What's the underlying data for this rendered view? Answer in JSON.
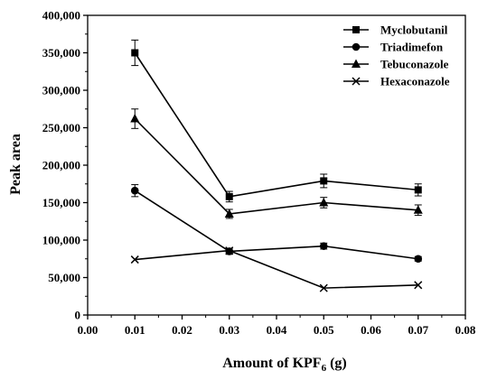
{
  "chart_data": {
    "type": "line",
    "xlabel": "Amount of KPF",
    "xlabel_sub": "6",
    "xlabel_tail": " (g)",
    "ylabel": "Peak area",
    "x": [
      0.01,
      0.03,
      0.05,
      0.07
    ],
    "xlim": [
      0.0,
      0.08
    ],
    "ylim": [
      0,
      400000
    ],
    "x_ticks": [
      "0.00",
      "0.01",
      "0.02",
      "0.03",
      "0.04",
      "0.05",
      "0.06",
      "0.07",
      "0.08"
    ],
    "y_ticks": [
      "0",
      "50,000",
      "100,000",
      "150,000",
      "200,000",
      "250,000",
      "300,000",
      "350,000",
      "400,000"
    ],
    "legend_position": "top-right",
    "grid": false,
    "series": [
      {
        "name": "Myclobutanil",
        "marker": "square",
        "values": [
          350000,
          158000,
          179000,
          167000
        ],
        "errors": [
          17000,
          7000,
          9000,
          8000
        ]
      },
      {
        "name": "Triadimefon",
        "marker": "circle",
        "values": [
          166000,
          85000,
          92000,
          75000
        ],
        "errors": [
          8000,
          4000,
          4000,
          3000
        ]
      },
      {
        "name": "Tebuconazole",
        "marker": "triangle",
        "values": [
          262000,
          135000,
          150000,
          140000
        ],
        "errors": [
          13000,
          6000,
          7000,
          7000
        ]
      },
      {
        "name": "Hexaconazole",
        "marker": "x",
        "values": [
          74000,
          86000,
          36000,
          40000
        ],
        "errors": [
          0,
          0,
          0,
          0
        ]
      }
    ]
  }
}
